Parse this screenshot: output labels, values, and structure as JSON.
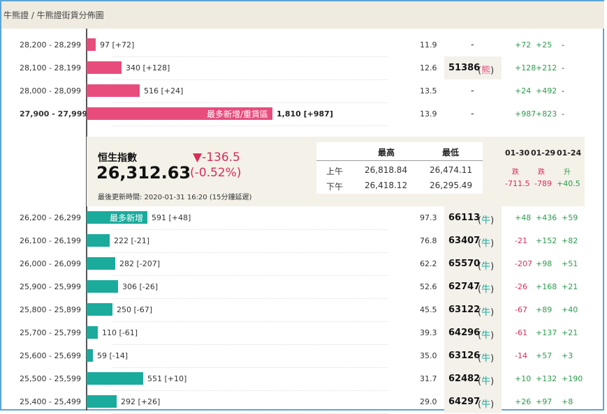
{
  "breadcrumb": "牛熊證 / 牛熊證街貨分佈圖",
  "bear_rows": [
    {
      "range": "28,200 - 28,299",
      "count": "97 [+72]",
      "bar_fill": 0.05,
      "pct": "11.9",
      "code": "-",
      "sym": "",
      "c1": "+72",
      "c2": "+25",
      "c3": "-"
    },
    {
      "range": "28,100 - 28,199",
      "count": "340 [+128]",
      "bar_fill": 0.188,
      "pct": "12.6",
      "code": "51386",
      "sym": "熊",
      "c1": "+128",
      "c2": "+212",
      "c3": "-"
    },
    {
      "range": "28,000 - 28,099",
      "count": "516 [+24]",
      "bar_fill": 0.285,
      "pct": "13.5",
      "code": "-",
      "sym": "",
      "c1": "+24",
      "c2": "+492",
      "c3": "-"
    },
    {
      "range": "27,900 - 27,999",
      "count": "1,810 [+987]",
      "bar_fill": 1.0,
      "pct": "13.9",
      "code": "-",
      "sym": "",
      "c1": "+987",
      "c2": "+823",
      "c3": "-",
      "inlabel": "最多新增/重貨區"
    }
  ],
  "bull_rows": [
    {
      "range": "26,200 - 26,299",
      "count": "591 [+48]",
      "bar_fill": 0.327,
      "pct": "97.3",
      "code": "66113",
      "sym": "牛",
      "c1": "+48",
      "c2": "+436",
      "c3": "+59",
      "inlabel": "最多新增"
    },
    {
      "range": "26,100 - 26,199",
      "count": "222 [-21]",
      "bar_fill": 0.123,
      "pct": "76.8",
      "code": "63407",
      "sym": "牛",
      "c1": "-21",
      "c2": "+152",
      "c3": "+82"
    },
    {
      "range": "26,000 - 26,099",
      "count": "282 [-207]",
      "bar_fill": 0.156,
      "pct": "62.2",
      "code": "65570",
      "sym": "牛",
      "c1": "-207",
      "c2": "+98",
      "c3": "+51"
    },
    {
      "range": "25,900 - 25,999",
      "count": "306 [-26]",
      "bar_fill": 0.169,
      "pct": "52.6",
      "code": "62747",
      "sym": "牛",
      "c1": "-26",
      "c2": "+168",
      "c3": "+21"
    },
    {
      "range": "25,800 - 25,899",
      "count": "250 [-67]",
      "bar_fill": 0.138,
      "pct": "45.5",
      "code": "63122",
      "sym": "牛",
      "c1": "-67",
      "c2": "+89",
      "c3": "+40"
    },
    {
      "range": "25,700 - 25,799",
      "count": "110 [-61]",
      "bar_fill": 0.061,
      "pct": "39.3",
      "code": "64296",
      "sym": "牛",
      "c1": "-61",
      "c2": "+137",
      "c3": "+21"
    },
    {
      "range": "25,600 - 25,699",
      "count": "59 [-14]",
      "bar_fill": 0.033,
      "pct": "35.0",
      "code": "63126",
      "sym": "牛",
      "c1": "-14",
      "c2": "+57",
      "c3": "+3"
    },
    {
      "range": "25,500 - 25,599",
      "count": "551 [+10]",
      "bar_fill": 0.304,
      "pct": "31.7",
      "code": "62482",
      "sym": "牛",
      "c1": "+10",
      "c2": "+132",
      "c3": "+190"
    },
    {
      "range": "25,400 - 25,499",
      "count": "292 [+26]",
      "bar_fill": 0.161,
      "pct": "29.0",
      "code": "64297",
      "sym": "牛",
      "c1": "+26",
      "c2": "+97",
      "c3": "+8"
    }
  ],
  "index_panel": {
    "label": "恒生指數",
    "value": "26,312.63",
    "change": "▼-136.5",
    "change_pct": "(-0.52%)",
    "updated": "最後更新時間: 2020-01-31 16:20 (15分鐘延遲)",
    "high_header": "最高",
    "low_header": "最低",
    "am_label": "上午",
    "am_high": "26,818.84",
    "am_low": "26,474.11",
    "pm_label": "下午",
    "pm_high": "26,418.12",
    "pm_low": "26,295.49",
    "dates": [
      {
        "date": "01-30",
        "word": "跌",
        "net": "-711.5"
      },
      {
        "date": "01-29",
        "word": "跌",
        "net": "-789"
      },
      {
        "date": "01-24",
        "word": "升",
        "net": "+40.5"
      }
    ]
  },
  "colors": {
    "bear": "#e84c7d",
    "bull": "#1aab9c",
    "up": "#2e9a4e",
    "down": "#d62d5a"
  }
}
